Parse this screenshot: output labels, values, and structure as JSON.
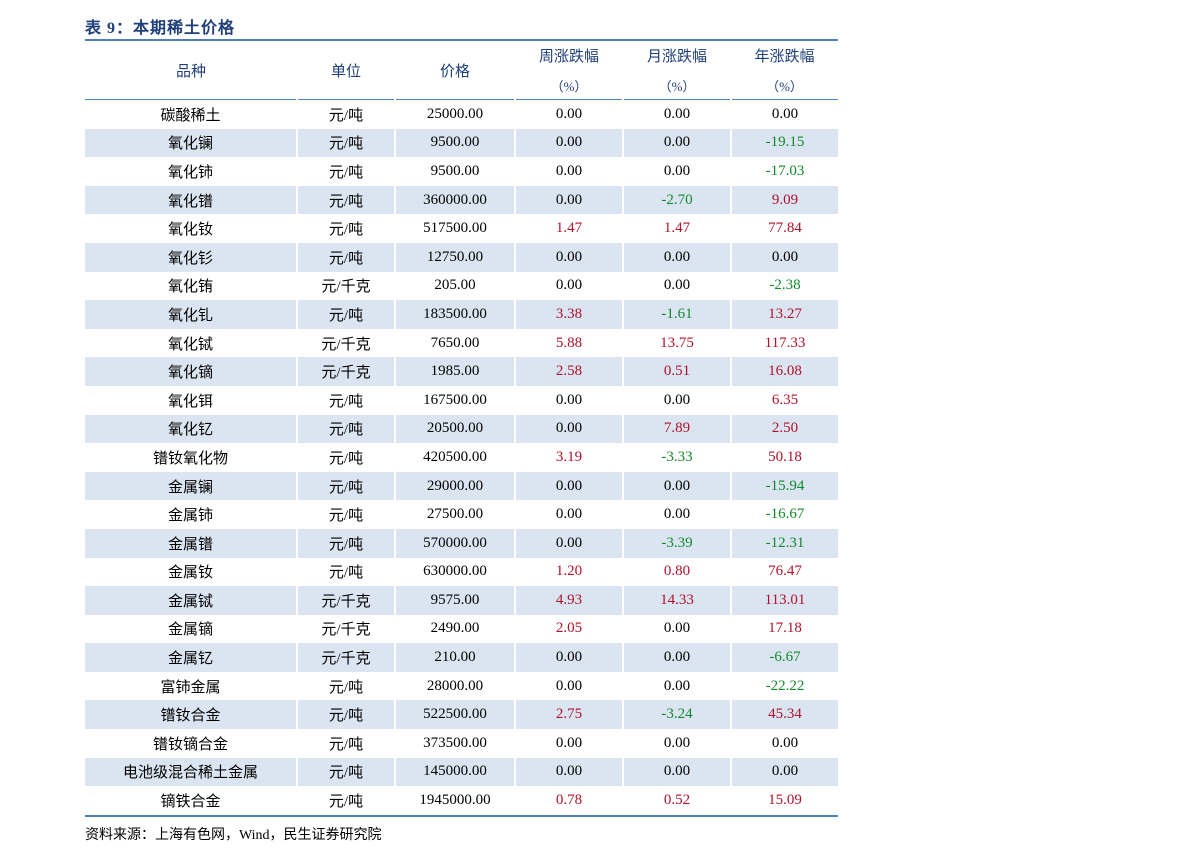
{
  "title": "表 9：本期稀土价格",
  "table": {
    "header": [
      {
        "label": "品种"
      },
      {
        "label": "单位"
      },
      {
        "label": "价格"
      },
      {
        "label": "周涨跌幅",
        "unit": "（%）"
      },
      {
        "label": "月涨跌幅",
        "unit": "（%）"
      },
      {
        "label": "年涨跌幅",
        "unit": "（%）"
      }
    ],
    "rows": [
      [
        "碳酸稀土",
        "元/吨",
        "25000.00",
        "0.00",
        "0.00",
        "0.00"
      ],
      [
        "氧化镧",
        "元/吨",
        "9500.00",
        "0.00",
        "0.00",
        "-19.15"
      ],
      [
        "氧化铈",
        "元/吨",
        "9500.00",
        "0.00",
        "0.00",
        "-17.03"
      ],
      [
        "氧化镨",
        "元/吨",
        "360000.00",
        "0.00",
        "-2.70",
        "9.09"
      ],
      [
        "氧化钕",
        "元/吨",
        "517500.00",
        "1.47",
        "1.47",
        "77.84"
      ],
      [
        "氧化钐",
        "元/吨",
        "12750.00",
        "0.00",
        "0.00",
        "0.00"
      ],
      [
        "氧化铕",
        "元/千克",
        "205.00",
        "0.00",
        "0.00",
        "-2.38"
      ],
      [
        "氧化钆",
        "元/吨",
        "183500.00",
        "3.38",
        "-1.61",
        "13.27"
      ],
      [
        "氧化铽",
        "元/千克",
        "7650.00",
        "5.88",
        "13.75",
        "117.33"
      ],
      [
        "氧化镝",
        "元/千克",
        "1985.00",
        "2.58",
        "0.51",
        "16.08"
      ],
      [
        "氧化铒",
        "元/吨",
        "167500.00",
        "0.00",
        "0.00",
        "6.35"
      ],
      [
        "氧化钇",
        "元/吨",
        "20500.00",
        "0.00",
        "7.89",
        "2.50"
      ],
      [
        "镨钕氧化物",
        "元/吨",
        "420500.00",
        "3.19",
        "-3.33",
        "50.18"
      ],
      [
        "金属镧",
        "元/吨",
        "29000.00",
        "0.00",
        "0.00",
        "-15.94"
      ],
      [
        "金属铈",
        "元/吨",
        "27500.00",
        "0.00",
        "0.00",
        "-16.67"
      ],
      [
        "金属镨",
        "元/吨",
        "570000.00",
        "0.00",
        "-3.39",
        "-12.31"
      ],
      [
        "金属钕",
        "元/吨",
        "630000.00",
        "1.20",
        "0.80",
        "76.47"
      ],
      [
        "金属铽",
        "元/千克",
        "9575.00",
        "4.93",
        "14.33",
        "113.01"
      ],
      [
        "金属镝",
        "元/千克",
        "2490.00",
        "2.05",
        "0.00",
        "17.18"
      ],
      [
        "金属钇",
        "元/千克",
        "210.00",
        "0.00",
        "0.00",
        "-6.67"
      ],
      [
        "富铈金属",
        "元/吨",
        "28000.00",
        "0.00",
        "0.00",
        "-22.22"
      ],
      [
        "镨钕合金",
        "元/吨",
        "522500.00",
        "2.75",
        "-3.24",
        "45.34"
      ],
      [
        "镨钕镝合金",
        "元/吨",
        "373500.00",
        "0.00",
        "0.00",
        "0.00"
      ],
      [
        "电池级混合稀土金属",
        "元/吨",
        "145000.00",
        "0.00",
        "0.00",
        "0.00"
      ],
      [
        "镝铁合金",
        "元/吨",
        "1945000.00",
        "0.78",
        "0.52",
        "15.09"
      ]
    ]
  },
  "source": "资料来源：上海有色网，Wind，民生证券研究院"
}
